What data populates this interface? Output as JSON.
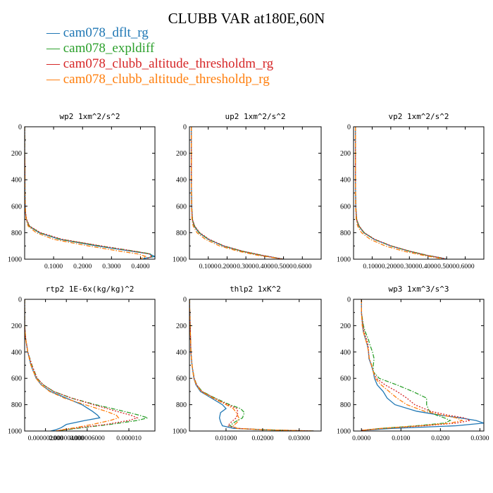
{
  "title": "CLUBB VAR at180E,60N",
  "legend": [
    {
      "name": "cam078_dflt_rg",
      "color": "#1f77b4",
      "dash": "solid"
    },
    {
      "name": "cam078_expldiff",
      "color": "#2ca02c",
      "dash": "dashdot"
    },
    {
      "name": "cam078_clubb_altitude_thresholdm_rg",
      "color": "#d62728",
      "dash": "dotted"
    },
    {
      "name": "cam078_clubb_altitude_thresholdp_rg",
      "color": "#ff7f0e",
      "dash": "dashdot"
    }
  ],
  "chart_data": [
    {
      "type": "line",
      "title": "wp2  1xm^2/s^2",
      "xlim": [
        0,
        0.45
      ],
      "ylim": [
        0,
        1000
      ],
      "y_inverted": true,
      "xticks": [
        0.1,
        0.2,
        0.3,
        0.4
      ],
      "xtick_labels": [
        "0.1000",
        "0.2000",
        "0.3000",
        "0.4000"
      ],
      "yticks": [
        0,
        200,
        400,
        600,
        800,
        1000
      ],
      "y": [
        0,
        200,
        300,
        400,
        500,
        600,
        650,
        700,
        750,
        800,
        850,
        900,
        940,
        960,
        980,
        995
      ],
      "series": [
        {
          "name": "cam078_dflt_rg",
          "values": [
            0.0,
            0.0,
            0.001,
            0.001,
            0.001,
            0.002,
            0.003,
            0.006,
            0.015,
            0.05,
            0.12,
            0.25,
            0.37,
            0.43,
            0.45,
            0.41
          ]
        },
        {
          "name": "cam078_expldiff",
          "values": [
            0.0,
            0.0,
            0.001,
            0.001,
            0.001,
            0.002,
            0.003,
            0.006,
            0.016,
            0.052,
            0.125,
            0.26,
            0.38,
            0.435,
            0.44,
            0.42
          ]
        },
        {
          "name": "cam078_clubb_altitude_thresholdm_rg",
          "values": [
            0.0,
            0.0,
            0.001,
            0.001,
            0.001,
            0.002,
            0.003,
            0.007,
            0.017,
            0.055,
            0.13,
            0.265,
            0.38,
            0.43,
            0.44,
            0.42
          ]
        },
        {
          "name": "cam078_clubb_altitude_thresholdp_rg",
          "values": [
            0.0,
            0.0,
            0.001,
            0.001,
            0.001,
            0.002,
            0.003,
            0.005,
            0.012,
            0.04,
            0.1,
            0.22,
            0.33,
            0.39,
            0.42,
            0.4
          ]
        }
      ]
    },
    {
      "type": "line",
      "title": "up2  1xm^2/s^2",
      "xlim": [
        0,
        0.7
      ],
      "ylim": [
        0,
        1000
      ],
      "y_inverted": true,
      "xticks": [
        0.1,
        0.2,
        0.3,
        0.4,
        0.5,
        0.6
      ],
      "xtick_labels": [
        "0.1000",
        "0.2000",
        "0.3000",
        "0.4000",
        "0.5000",
        "0.6000"
      ],
      "yticks": [
        0,
        200,
        400,
        600,
        800,
        1000
      ],
      "y": [
        0,
        200,
        400,
        600,
        700,
        750,
        800,
        850,
        900,
        940,
        970,
        990,
        1000
      ],
      "series": [
        {
          "name": "cam078_dflt_rg",
          "values": [
            0.01,
            0.01,
            0.01,
            0.012,
            0.015,
            0.025,
            0.05,
            0.1,
            0.18,
            0.28,
            0.38,
            0.46,
            0.5
          ]
        },
        {
          "name": "cam078_expldiff",
          "values": [
            0.01,
            0.01,
            0.01,
            0.012,
            0.016,
            0.027,
            0.052,
            0.102,
            0.182,
            0.282,
            0.382,
            0.46,
            0.5
          ]
        },
        {
          "name": "cam078_clubb_altitude_thresholdm_rg",
          "values": [
            0.01,
            0.01,
            0.01,
            0.012,
            0.016,
            0.028,
            0.055,
            0.105,
            0.185,
            0.285,
            0.385,
            0.46,
            0.5
          ]
        },
        {
          "name": "cam078_clubb_altitude_thresholdp_rg",
          "values": [
            0.01,
            0.01,
            0.01,
            0.011,
            0.013,
            0.02,
            0.04,
            0.085,
            0.16,
            0.26,
            0.36,
            0.45,
            0.49
          ]
        }
      ]
    },
    {
      "type": "line",
      "title": "vp2  1xm^2/s^2",
      "xlim": [
        0,
        0.7
      ],
      "ylim": [
        0,
        1000
      ],
      "y_inverted": true,
      "xticks": [
        0.1,
        0.2,
        0.3,
        0.4,
        0.5,
        0.6
      ],
      "xtick_labels": [
        "0.1000",
        "0.2000",
        "0.3000",
        "0.4000",
        "0.5000",
        "0.6000"
      ],
      "yticks": [
        0,
        200,
        400,
        600,
        800,
        1000
      ],
      "y": [
        0,
        200,
        400,
        600,
        700,
        750,
        800,
        850,
        900,
        940,
        970,
        990,
        1000
      ],
      "series": [
        {
          "name": "cam078_dflt_rg",
          "values": [
            0.01,
            0.01,
            0.01,
            0.012,
            0.016,
            0.028,
            0.055,
            0.11,
            0.2,
            0.3,
            0.39,
            0.47,
            0.5
          ]
        },
        {
          "name": "cam078_expldiff",
          "values": [
            0.01,
            0.01,
            0.01,
            0.012,
            0.017,
            0.03,
            0.057,
            0.112,
            0.202,
            0.302,
            0.392,
            0.47,
            0.5
          ]
        },
        {
          "name": "cam078_clubb_altitude_thresholdm_rg",
          "values": [
            0.01,
            0.01,
            0.01,
            0.012,
            0.017,
            0.03,
            0.058,
            0.114,
            0.204,
            0.304,
            0.394,
            0.47,
            0.5
          ]
        },
        {
          "name": "cam078_clubb_altitude_thresholdp_rg",
          "values": [
            0.01,
            0.01,
            0.01,
            0.011,
            0.014,
            0.022,
            0.043,
            0.09,
            0.17,
            0.27,
            0.37,
            0.45,
            0.49
          ]
        }
      ]
    },
    {
      "type": "line",
      "title": "rtp2  1E-6x(kg/kg)^2",
      "xlim": [
        0,
        1.25e-05
      ],
      "ylim": [
        0,
        1000
      ],
      "y_inverted": true,
      "xticks": [
        2e-06,
        4e-06,
        6e-06,
        1e-05
      ],
      "xtick_labels": [
        "0.000002000",
        "0.000004000",
        "0.000006000",
        "0.000010"
      ],
      "yticks": [
        0,
        200,
        400,
        600,
        800,
        1000
      ],
      "y": [
        0,
        200,
        300,
        400,
        500,
        600,
        650,
        700,
        750,
        800,
        850,
        880,
        900,
        920,
        950,
        975,
        990,
        1000
      ],
      "series": [
        {
          "name": "cam078_dflt_rg",
          "values": [
            0.0,
            0.0,
            1e-07,
            3e-07,
            6e-07,
            1.1e-06,
            1.6e-06,
            2.5e-06,
            4e-06,
            5.5e-06,
            6.5e-06,
            7e-06,
            7.2e-06,
            5.8e-06,
            4e-06,
            3.5e-06,
            3e-06,
            2.5e-06
          ]
        },
        {
          "name": "cam078_expldiff",
          "values": [
            0.0,
            0.0,
            1e-07,
            3e-07,
            7e-07,
            1.2e-06,
            1.8e-06,
            2.8e-06,
            4.5e-06,
            6.8e-06,
            9.5e-06,
            1.1e-05,
            1.18e-05,
            1.08e-05,
            8.2e-06,
            5.5e-06,
            4e-06,
            3e-06
          ]
        },
        {
          "name": "cam078_clubb_altitude_thresholdm_rg",
          "values": [
            0.0,
            0.0,
            1e-07,
            3e-07,
            7e-07,
            1.2e-06,
            1.8e-06,
            2.8e-06,
            4.5e-06,
            6.6e-06,
            8.8e-06,
            1.02e-05,
            1.08e-05,
            1e-05,
            7.8e-06,
            5.2e-06,
            3.8e-06,
            3e-06
          ]
        },
        {
          "name": "cam078_clubb_altitude_thresholdp_rg",
          "values": [
            0.0,
            0.0,
            1e-07,
            3e-07,
            6e-07,
            1.1e-06,
            1.6e-06,
            2.4e-06,
            3.8e-06,
            5.8e-06,
            7.8e-06,
            8.8e-06,
            9e-06,
            8.2e-06,
            6.5e-06,
            4.8e-06,
            3.6e-06,
            3e-06
          ]
        }
      ]
    },
    {
      "type": "line",
      "title": "thlp2  1xK^2",
      "xlim": [
        0,
        0.036
      ],
      "ylim": [
        0,
        1000
      ],
      "y_inverted": true,
      "xticks": [
        0.01,
        0.02,
        0.03
      ],
      "xtick_labels": [
        "0.01000",
        "0.02000",
        "0.03000"
      ],
      "yticks": [
        0,
        200,
        400,
        600,
        800,
        1000
      ],
      "y": [
        0,
        200,
        400,
        500,
        600,
        650,
        700,
        750,
        800,
        830,
        860,
        900,
        930,
        960,
        980,
        990,
        1000
      ],
      "series": [
        {
          "name": "cam078_dflt_rg",
          "values": [
            0.0,
            0.0002,
            0.0004,
            0.0007,
            0.0012,
            0.0018,
            0.003,
            0.006,
            0.009,
            0.01,
            0.0085,
            0.0082,
            0.0085,
            0.009,
            0.012,
            0.02,
            0.034
          ]
        },
        {
          "name": "cam078_expldiff",
          "values": [
            0.0,
            0.0002,
            0.0004,
            0.0007,
            0.0013,
            0.002,
            0.0035,
            0.007,
            0.011,
            0.014,
            0.015,
            0.0145,
            0.0125,
            0.011,
            0.013,
            0.02,
            0.034
          ]
        },
        {
          "name": "cam078_clubb_altitude_thresholdm_rg",
          "values": [
            0.0,
            0.0002,
            0.0004,
            0.0007,
            0.0013,
            0.002,
            0.0034,
            0.0068,
            0.0105,
            0.013,
            0.0132,
            0.0128,
            0.0115,
            0.0105,
            0.013,
            0.02,
            0.034
          ]
        },
        {
          "name": "cam078_clubb_altitude_thresholdp_rg",
          "values": [
            0.0,
            0.0002,
            0.0004,
            0.0007,
            0.0012,
            0.0019,
            0.0032,
            0.0064,
            0.01,
            0.012,
            0.0128,
            0.0135,
            0.0132,
            0.012,
            0.013,
            0.02,
            0.034
          ]
        }
      ]
    },
    {
      "type": "line",
      "title": "wp3  1xm^3/s^3",
      "xlim": [
        -0.002,
        0.031
      ],
      "ylim": [
        0,
        1000
      ],
      "y_inverted": true,
      "xticks": [
        0,
        0.01,
        0.02,
        0.03
      ],
      "xtick_labels": [
        "0.0000",
        "0.0100",
        "0.0200",
        "0.0300"
      ],
      "yticks": [
        0,
        200,
        400,
        600,
        800,
        1000
      ],
      "y": [
        0,
        100,
        200,
        250,
        300,
        350,
        400,
        450,
        500,
        550,
        600,
        650,
        700,
        750,
        800,
        850,
        880,
        900,
        920,
        940,
        960,
        980,
        995
      ],
      "series": [
        {
          "name": "cam078_dflt_rg",
          "values": [
            0.0,
            0.0,
            0.0003,
            0.0005,
            0.001,
            0.0015,
            0.0018,
            0.0019,
            0.0025,
            0.003,
            0.0033,
            0.004,
            0.0055,
            0.0065,
            0.0085,
            0.014,
            0.02,
            0.025,
            0.029,
            0.031,
            0.024,
            0.008,
            0.0
          ]
        },
        {
          "name": "cam078_expldiff",
          "values": [
            0.0,
            0.0,
            0.0005,
            0.001,
            0.0017,
            0.0022,
            0.0028,
            0.0032,
            0.003,
            0.003,
            0.0045,
            0.009,
            0.013,
            0.0165,
            0.0165,
            0.0172,
            0.019,
            0.021,
            0.0225,
            0.021,
            0.014,
            0.005,
            0.0
          ]
        },
        {
          "name": "cam078_clubb_altitude_thresholdm_rg",
          "values": [
            0.0,
            0.0,
            0.0004,
            0.0007,
            0.0013,
            0.0017,
            0.0018,
            0.002,
            0.0025,
            0.003,
            0.0038,
            0.006,
            0.009,
            0.0115,
            0.0135,
            0.0175,
            0.022,
            0.026,
            0.0275,
            0.024,
            0.016,
            0.006,
            0.0
          ]
        },
        {
          "name": "cam078_clubb_altitude_thresholdp_rg",
          "values": [
            0.0,
            0.0,
            0.0002,
            0.0005,
            0.001,
            0.0015,
            0.0018,
            0.002,
            0.0026,
            0.003,
            0.0035,
            0.005,
            0.007,
            0.009,
            0.0115,
            0.016,
            0.0205,
            0.024,
            0.0255,
            0.0225,
            0.015,
            0.005,
            0.0
          ]
        }
      ]
    }
  ]
}
